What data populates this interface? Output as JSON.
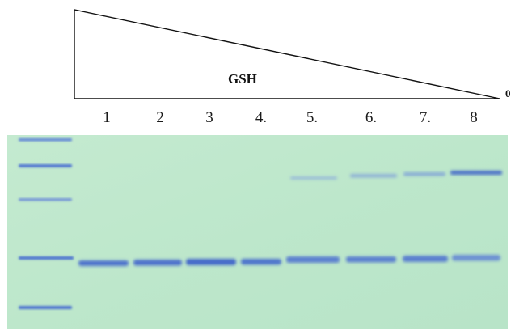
{
  "gradient": {
    "label": "GSH",
    "end_label": "0"
  },
  "lanes": {
    "labels": [
      "1",
      "2",
      "3",
      "4.",
      "5.",
      "6.",
      "7.",
      "8"
    ]
  },
  "gel": {
    "background_color": "#bfe8cc",
    "band_color": "#4a6fd0",
    "ladder_band_count": 5,
    "main_band": "present in lanes 1-8",
    "upper_band": "faint in lanes 5-7, strong in lane 8"
  }
}
